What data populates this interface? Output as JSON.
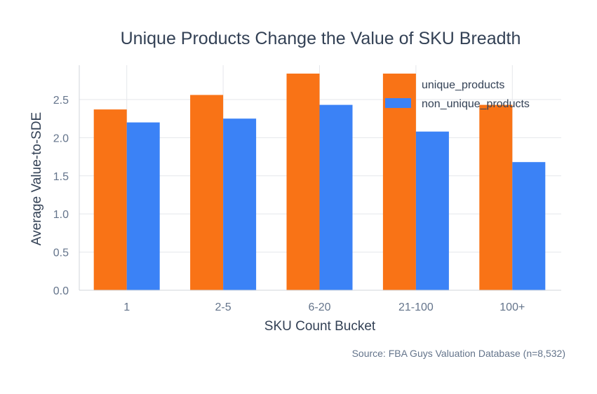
{
  "chart_data": {
    "type": "bar",
    "title": "Unique Products Change the Value of SKU Breadth",
    "xlabel": "SKU Count Bucket",
    "ylabel": "Average Value-to-SDE",
    "categories": [
      "1",
      "2-5",
      "6-20",
      "21-100",
      "100+"
    ],
    "series": [
      {
        "name": "unique_products",
        "color": "#f97316",
        "values": [
          2.37,
          2.56,
          2.84,
          2.84,
          2.43
        ]
      },
      {
        "name": "non_unique_products",
        "color": "#3b82f6",
        "values": [
          2.2,
          2.25,
          2.43,
          2.08,
          1.68
        ]
      }
    ],
    "ylim": [
      0,
      2.95
    ],
    "yticks": [
      0.0,
      0.5,
      1.0,
      1.5,
      2.0,
      2.5
    ],
    "ytick_labels": [
      "0.0",
      "0.5",
      "1.0",
      "1.5",
      "2.0",
      "2.5"
    ],
    "grid": true,
    "legend_position": "top-right",
    "source": "Source: FBA Guys Valuation Database (n=8,532)"
  }
}
